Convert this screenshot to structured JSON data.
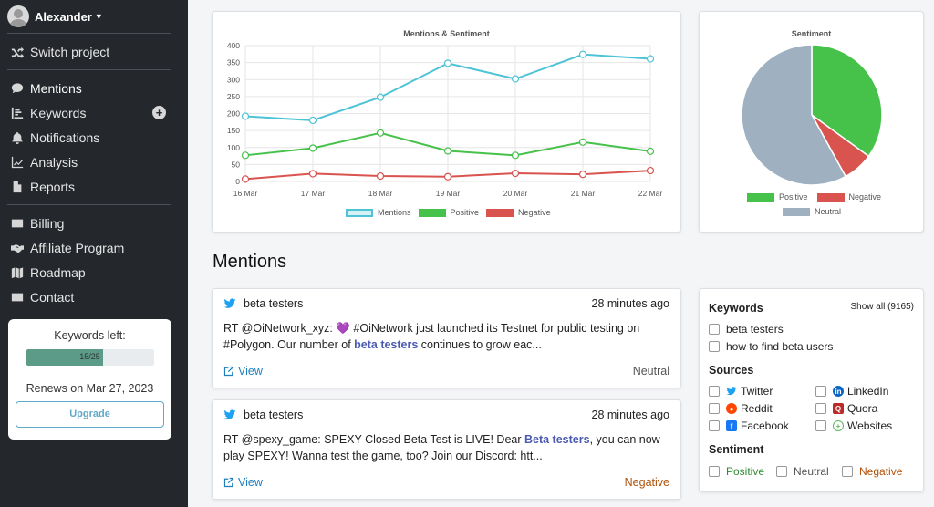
{
  "user": {
    "name": "Alexander"
  },
  "nav": {
    "switch_project": "Switch project",
    "items": [
      {
        "label": "Mentions",
        "icon": "comment-icon"
      },
      {
        "label": "Keywords",
        "icon": "list-icon"
      },
      {
        "label": "Notifications",
        "icon": "bell-icon"
      },
      {
        "label": "Analysis",
        "icon": "chart-line-icon"
      },
      {
        "label": "Reports",
        "icon": "file-icon"
      }
    ],
    "bottom_items": [
      {
        "label": "Billing",
        "icon": "credit-card-icon"
      },
      {
        "label": "Affiliate Program",
        "icon": "handshake-icon"
      },
      {
        "label": "Roadmap",
        "icon": "map-icon"
      },
      {
        "label": "Contact",
        "icon": "envelope-icon"
      }
    ]
  },
  "keywords_card": {
    "title": "Keywords left:",
    "progress_text": "15/25",
    "progress_fraction": 0.6,
    "renews": "Renews on Mar 27, 2023",
    "upgrade": "Upgrade"
  },
  "chart_data": [
    {
      "type": "line",
      "title": "Mentions & Sentiment",
      "x": [
        "16 Mar",
        "17 Mar",
        "18 Mar",
        "19 Mar",
        "20 Mar",
        "21 Mar",
        "22 Mar"
      ],
      "ylim": [
        0,
        400
      ],
      "yticks": [
        0,
        50,
        100,
        150,
        200,
        250,
        300,
        350,
        400
      ],
      "grid": true,
      "legend": "bottom",
      "series": [
        {
          "name": "Mentions",
          "color": "#4ec3d6",
          "values": [
            192,
            180,
            248,
            348,
            302,
            374,
            361
          ]
        },
        {
          "name": "Positive",
          "color": "#46c24b",
          "values": [
            77,
            98,
            143,
            90,
            77,
            116,
            89
          ]
        },
        {
          "name": "Negative",
          "color": "#d9534f",
          "values": [
            7,
            23,
            16,
            14,
            24,
            21,
            32
          ]
        }
      ]
    },
    {
      "type": "pie",
      "title": "Sentiment",
      "legend": "bottom",
      "slices": [
        {
          "name": "Positive",
          "color": "#46c24b",
          "value": 35
        },
        {
          "name": "Negative",
          "color": "#d9534f",
          "value": 7
        },
        {
          "name": "Neutral",
          "color": "#9fb0c1",
          "value": 58
        }
      ]
    }
  ],
  "mentions_heading": "Mentions",
  "mentions": [
    {
      "keyword": "beta testers",
      "time": "28 minutes ago",
      "text_parts": [
        "RT @OiNetwork_xyz: 💜 #OiNetwork just launched its Testnet for public testing on #Polygon. Our number of ",
        "beta testers",
        " continues to grow eac..."
      ],
      "view": "View",
      "sentiment": "Neutral",
      "sentiment_color": "#555555"
    },
    {
      "keyword": "beta testers",
      "time": "28 minutes ago",
      "text_parts": [
        "RT @spexy_game: SPEXY Closed Beta Test is LIVE! Dear ",
        "Beta testers",
        ", you can now play SPEXY! Wanna test the game, too? Join our Discord: htt..."
      ],
      "view": "View",
      "sentiment": "Negative",
      "sentiment_color": "#b0520b"
    }
  ],
  "filters": {
    "keywords_title": "Keywords",
    "show_all": "Show all (9165)",
    "keywords": [
      "beta testers",
      "how to find beta users"
    ],
    "sources_title": "Sources",
    "sources": [
      {
        "label": "Twitter",
        "icon": "twitter-icon",
        "color": "#1da1f2"
      },
      {
        "label": "LinkedIn",
        "icon": "linkedin-icon",
        "color": "#0a66c2"
      },
      {
        "label": "Reddit",
        "icon": "reddit-icon",
        "color": "#ff4500"
      },
      {
        "label": "Quora",
        "icon": "quora-icon",
        "color": "#b92b27"
      },
      {
        "label": "Facebook",
        "icon": "facebook-icon",
        "color": "#1877f2"
      },
      {
        "label": "Websites",
        "icon": "globe-icon",
        "color": "#5cb85c"
      }
    ],
    "sentiment_title": "Sentiment",
    "sentiments": [
      {
        "label": "Positive",
        "color": "#2e8b2e"
      },
      {
        "label": "Neutral",
        "color": "#555555"
      },
      {
        "label": "Negative",
        "color": "#b0520b"
      }
    ]
  }
}
